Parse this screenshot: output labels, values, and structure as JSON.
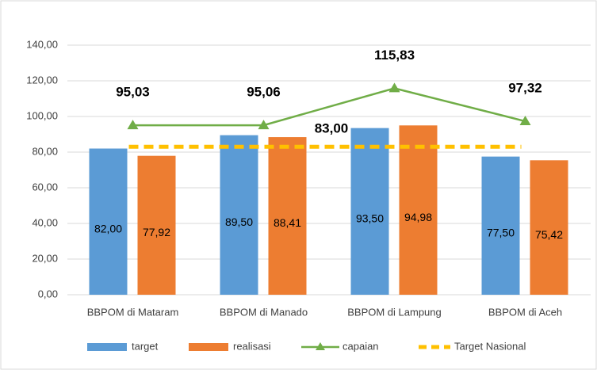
{
  "chart_data": {
    "type": "bar",
    "categories": [
      "BBPOM di Mataram",
      "BBPOM di Manado",
      "BBPOM di Lampung",
      "BBPOM di Aceh"
    ],
    "series": [
      {
        "name": "target",
        "kind": "bar",
        "color": "#5b9bd5",
        "values": [
          82,
          89.5,
          93.5,
          77.5
        ],
        "value_labels": [
          "82,00",
          "89,50",
          "93,50",
          "77,50"
        ]
      },
      {
        "name": "realisasi",
        "kind": "bar",
        "color": "#ed7d31",
        "values": [
          77.92,
          88.41,
          94.98,
          75.42
        ],
        "value_labels": [
          "77,92",
          "88,41",
          "94,98",
          "75,42"
        ]
      },
      {
        "name": "capaian",
        "kind": "line",
        "color": "#70ad47",
        "values": [
          95.03,
          95.06,
          115.83,
          97.32
        ],
        "value_labels": [
          "95,03",
          "95,06",
          "115,83",
          "97,32"
        ]
      }
    ],
    "reference_line": {
      "name": "Target Nasional",
      "color": "#ffc000",
      "value": 83,
      "value_label": "83,00"
    },
    "ylim": [
      0,
      140
    ],
    "yticks": [
      {
        "value": 0,
        "label": "0,00"
      },
      {
        "value": 20,
        "label": "20,00"
      },
      {
        "value": 40,
        "label": "40,00"
      },
      {
        "value": 60,
        "label": "60,00"
      },
      {
        "value": 80,
        "label": "80,00"
      },
      {
        "value": 100,
        "label": "100,00"
      },
      {
        "value": 120,
        "label": "120,00"
      },
      {
        "value": 140,
        "label": "140,00"
      }
    ],
    "grid": true
  }
}
